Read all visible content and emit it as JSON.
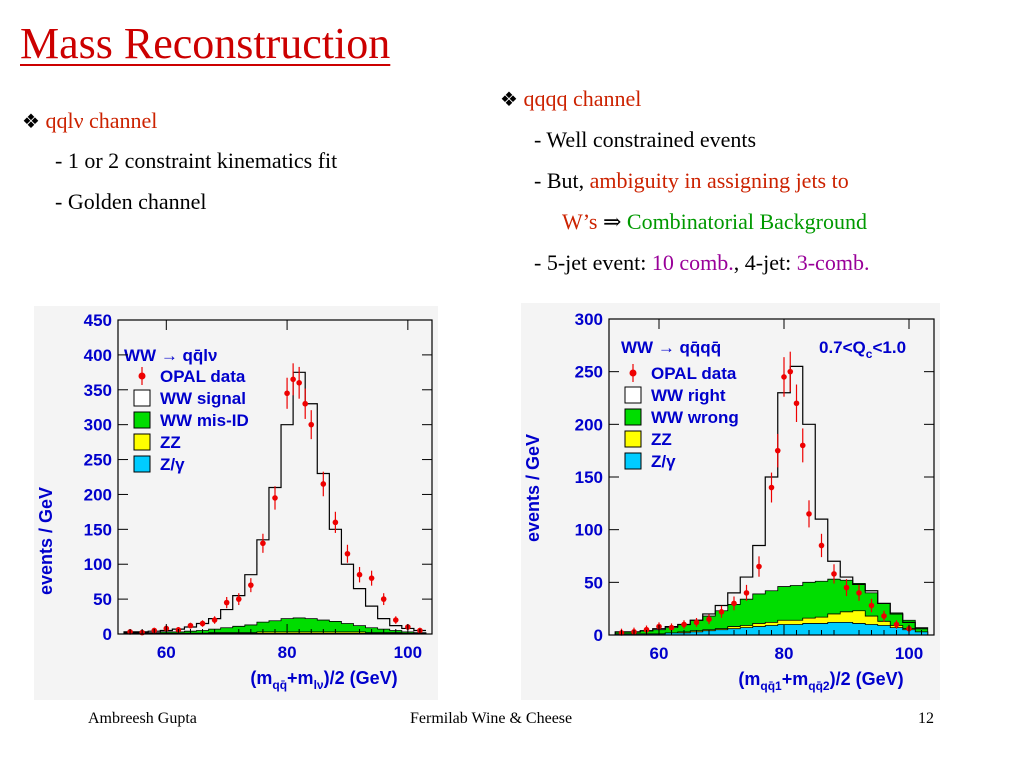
{
  "slide": {
    "title": "Mass Reconstruction",
    "left": {
      "bullet_prefix": "qql",
      "bullet_nu": "ν",
      "bullet_suffix": " channel",
      "items": [
        "-  1 or 2 constraint kinematics fit",
        "-  Golden channel"
      ]
    },
    "right": {
      "bullet": "qqqq channel",
      "line1": "- Well constrained events",
      "line2_a": "- But, ",
      "line2_b": "ambiguity in assigning jets to",
      "line3_a": "W’s ",
      "line3_arrow": "⇒",
      "line3_b": " Combinatorial Background",
      "line4_a": "- 5-jet event: ",
      "line4_b": "10 comb.",
      "line4_c": ", 4-jet: ",
      "line4_d": "3-comb."
    },
    "footer": {
      "author": "Ambreesh Gupta",
      "event": "Fermilab Wine & Cheese",
      "page": "12"
    }
  },
  "colors": {
    "title": "#cc0000",
    "axis_text": "#0000cc",
    "data": "#ee0000",
    "mis_id": "#00dd00",
    "zz": "#ffff00",
    "zg": "#00ccff"
  },
  "chart_data": [
    {
      "type": "line",
      "ylabel": "events / GeV",
      "xlim": [
        52,
        104
      ],
      "ylim": [
        0,
        450
      ],
      "xticks": [
        60,
        80,
        100
      ],
      "yticks": [
        0,
        50,
        100,
        150,
        200,
        250,
        300,
        350,
        400,
        450
      ],
      "legend": [
        {
          "kind": "data",
          "label": "OPAL data"
        },
        {
          "kind": "signal",
          "label": "WW signal"
        },
        {
          "kind": "misid",
          "label": "WW mis-ID"
        },
        {
          "kind": "zz",
          "label": "ZZ"
        },
        {
          "kind": "zg",
          "label": "Z/γ"
        }
      ],
      "header": "WW → qq̄lν",
      "x": [
        54,
        56,
        58,
        60,
        62,
        64,
        66,
        68,
        70,
        72,
        74,
        76,
        78,
        80,
        82,
        84,
        86,
        88,
        90,
        92,
        94,
        96,
        98,
        100,
        102
      ],
      "total": [
        3,
        3,
        4,
        5,
        7,
        10,
        15,
        22,
        35,
        55,
        85,
        135,
        210,
        300,
        375,
        330,
        230,
        150,
        100,
        65,
        40,
        22,
        12,
        8,
        5
      ],
      "misid": [
        1,
        1,
        1,
        2,
        2,
        3,
        4,
        5,
        7,
        9,
        11,
        14,
        16,
        19,
        20,
        19,
        17,
        15,
        12,
        9,
        7,
        5,
        3,
        2,
        1
      ],
      "zz": [
        0,
        0,
        0,
        0,
        0,
        0,
        0,
        1,
        1,
        1,
        1,
        2,
        2,
        2,
        2,
        2,
        2,
        2,
        2,
        2,
        1,
        1,
        1,
        0,
        0
      ],
      "zg": [
        1,
        1,
        1,
        1,
        1,
        1,
        1,
        1,
        1,
        1,
        1,
        1,
        1,
        1,
        1,
        1,
        1,
        1,
        1,
        1,
        1,
        1,
        1,
        1,
        1
      ],
      "data": [
        [
          54,
          3
        ],
        [
          56,
          2
        ],
        [
          58,
          5
        ],
        [
          60,
          8
        ],
        [
          62,
          6
        ],
        [
          64,
          12
        ],
        [
          66,
          15
        ],
        [
          68,
          20
        ],
        [
          70,
          45
        ],
        [
          72,
          50
        ],
        [
          74,
          70
        ],
        [
          76,
          130
        ],
        [
          78,
          195
        ],
        [
          80,
          345
        ],
        [
          81,
          365
        ],
        [
          82,
          360
        ],
        [
          83,
          330
        ],
        [
          84,
          300
        ],
        [
          86,
          215
        ],
        [
          88,
          160
        ],
        [
          90,
          115
        ],
        [
          92,
          85
        ],
        [
          94,
          80
        ],
        [
          96,
          50
        ],
        [
          98,
          20
        ],
        [
          100,
          10
        ],
        [
          102,
          5
        ]
      ]
    },
    {
      "type": "line",
      "ylabel": "events / GeV",
      "xlim": [
        52,
        104
      ],
      "ylim": [
        0,
        300
      ],
      "xticks": [
        60,
        80,
        100
      ],
      "yticks": [
        0,
        50,
        100,
        150,
        200,
        250,
        300
      ],
      "header": "WW → qq̄qq̄",
      "header2": "0.7<Q",
      "header2_sub": "c",
      "header2_tail": "<1.0",
      "legend": [
        {
          "kind": "data",
          "label": "OPAL data"
        },
        {
          "kind": "signal",
          "label": "WW right"
        },
        {
          "kind": "misid",
          "label": "WW wrong"
        },
        {
          "kind": "zz",
          "label": "ZZ"
        },
        {
          "kind": "zg",
          "label": "Z/γ"
        }
      ],
      "x": [
        54,
        56,
        58,
        60,
        62,
        64,
        66,
        68,
        70,
        72,
        74,
        76,
        78,
        80,
        82,
        84,
        86,
        88,
        90,
        92,
        94,
        96,
        98,
        100,
        102
      ],
      "total": [
        3,
        3,
        4,
        6,
        8,
        10,
        14,
        20,
        28,
        40,
        55,
        85,
        150,
        230,
        255,
        200,
        110,
        70,
        55,
        48,
        42,
        30,
        20,
        12,
        6
      ],
      "misid": [
        2,
        2,
        3,
        4,
        5,
        7,
        10,
        13,
        17,
        21,
        25,
        28,
        30,
        32,
        33,
        34,
        34,
        33,
        30,
        26,
        22,
        17,
        12,
        8,
        4
      ],
      "zz": [
        0,
        0,
        0,
        0,
        0,
        1,
        1,
        1,
        1,
        2,
        2,
        3,
        3,
        4,
        4,
        5,
        6,
        8,
        10,
        12,
        8,
        4,
        2,
        1,
        0
      ],
      "zg": [
        1,
        1,
        1,
        1,
        2,
        2,
        3,
        4,
        5,
        6,
        7,
        8,
        9,
        10,
        10,
        11,
        11,
        12,
        12,
        11,
        10,
        9,
        7,
        5,
        3
      ],
      "data": [
        [
          54,
          2
        ],
        [
          56,
          3
        ],
        [
          58,
          5
        ],
        [
          60,
          8
        ],
        [
          62,
          7
        ],
        [
          64,
          10
        ],
        [
          66,
          12
        ],
        [
          68,
          15
        ],
        [
          70,
          22
        ],
        [
          72,
          30
        ],
        [
          74,
          40
        ],
        [
          76,
          65
        ],
        [
          78,
          140
        ],
        [
          79,
          175
        ],
        [
          80,
          245
        ],
        [
          81,
          250
        ],
        [
          82,
          220
        ],
        [
          83,
          180
        ],
        [
          84,
          115
        ],
        [
          86,
          85
        ],
        [
          88,
          58
        ],
        [
          90,
          45
        ],
        [
          92,
          40
        ],
        [
          94,
          28
        ],
        [
          96,
          18
        ],
        [
          98,
          10
        ],
        [
          100,
          6
        ]
      ]
    }
  ]
}
